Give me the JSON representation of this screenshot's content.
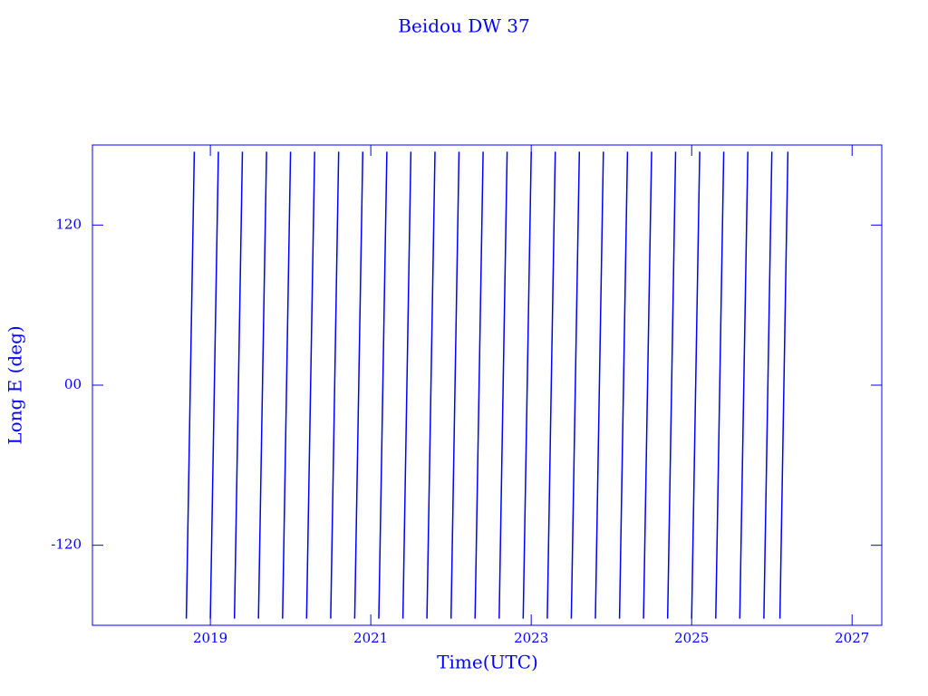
{
  "chart_data": {
    "type": "line",
    "title": "Beidou DW 37",
    "x_label": "Time(UTC)",
    "y_label": "Long E (deg)",
    "color": "#0000ff",
    "x": [
      2018.7,
      2018.8,
      2018.8,
      2019.0,
      2019.1,
      2019.1,
      2019.3,
      2019.4,
      2019.4,
      2019.6,
      2019.7,
      2019.7,
      2019.9,
      2020.0,
      2020.0,
      2020.2,
      2020.3,
      2020.3,
      2020.5,
      2020.6,
      2020.6,
      2020.8,
      2020.9,
      2020.9,
      2021.1,
      2021.2,
      2021.2,
      2021.4,
      2021.5,
      2021.5,
      2021.7,
      2021.8,
      2021.8,
      2022.0,
      2022.1,
      2022.1,
      2022.3,
      2022.4,
      2022.4,
      2022.6,
      2022.7,
      2022.7,
      2022.9,
      2023.0,
      2023.0,
      2023.2,
      2023.3,
      2023.3,
      2023.5,
      2023.6,
      2023.6,
      2023.8,
      2023.9,
      2023.9,
      2024.1,
      2024.2,
      2024.2,
      2024.4,
      2024.5,
      2024.5,
      2024.7,
      2024.8,
      2024.8,
      2025.0,
      2025.1,
      2025.1,
      2025.3,
      2025.4,
      2025.4,
      2025.6,
      2025.7,
      2025.7,
      2025.9,
      2026.0,
      2026.0,
      2026.1,
      2026.2
    ],
    "values": [
      -175,
      175,
      null,
      -175,
      175,
      null,
      -175,
      175,
      null,
      -175,
      175,
      null,
      -175,
      175,
      null,
      -175,
      175,
      null,
      -175,
      175,
      null,
      -175,
      175,
      null,
      -175,
      175,
      null,
      -175,
      175,
      null,
      -175,
      175,
      null,
      -175,
      175,
      null,
      -175,
      175,
      null,
      -175,
      175,
      null,
      -175,
      175,
      null,
      -175,
      175,
      null,
      -175,
      175,
      null,
      -175,
      175,
      null,
      -175,
      175,
      null,
      -175,
      175,
      null,
      -175,
      175,
      null,
      -175,
      175,
      null,
      -175,
      175,
      null,
      -175,
      175,
      null,
      -175,
      175,
      null,
      -175,
      175
    ],
    "xlim": [
      2017.53,
      2027.37
    ],
    "xticks": [
      2019,
      2021,
      2023,
      2025,
      2027
    ],
    "ylim": [
      -180,
      180
    ],
    "yticks": [
      -120,
      {
        "value": 0,
        "label": "00"
      },
      120
    ]
  }
}
